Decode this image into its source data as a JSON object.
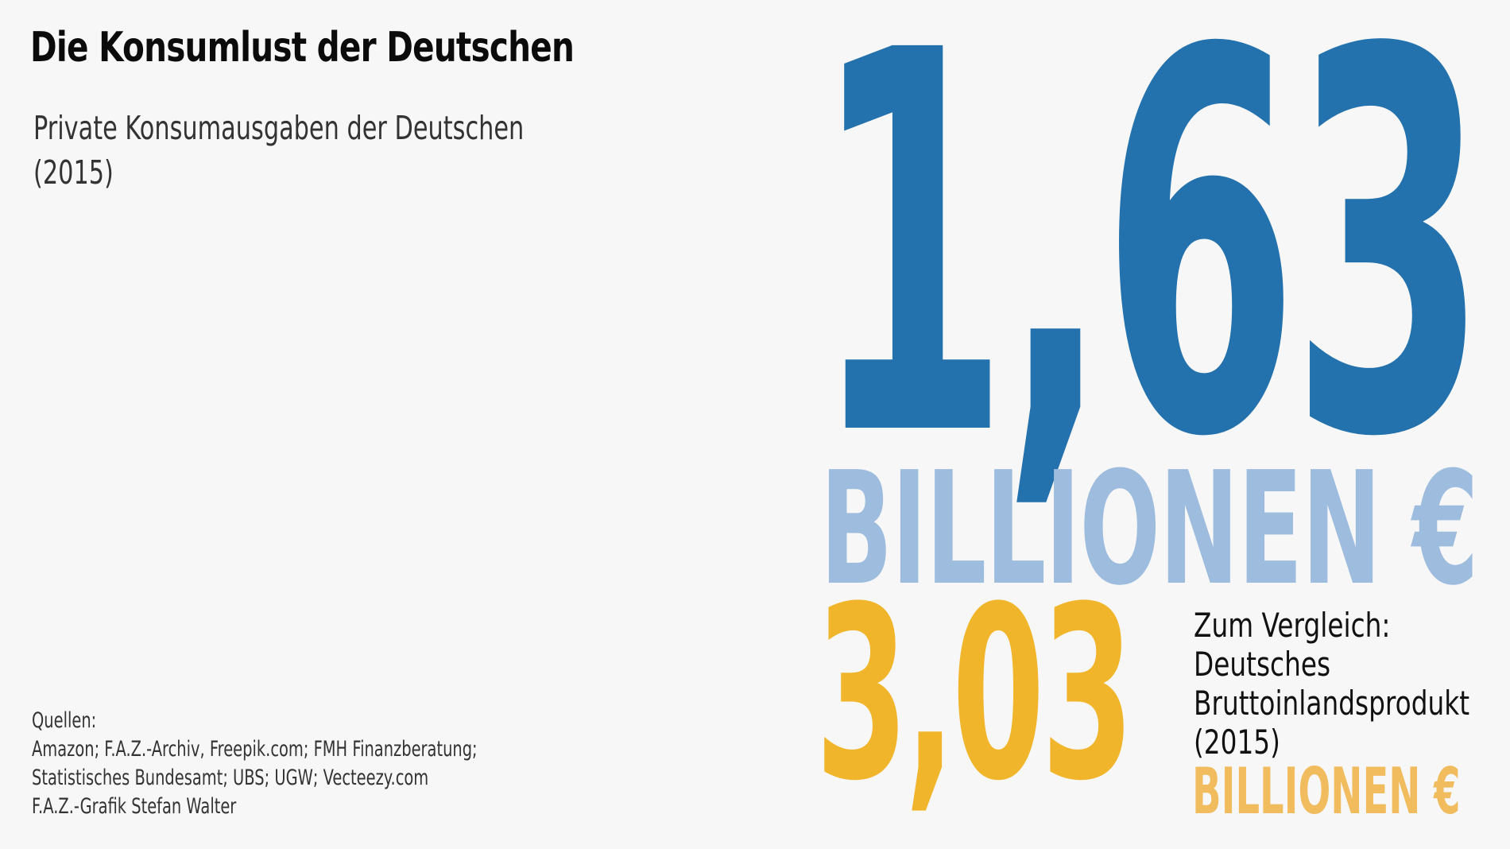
{
  "title": "Die Konsumlust der Deutschen",
  "subtitle": {
    "line1": "Private Konsumausgaben der Deutschen",
    "line2": "(2015)"
  },
  "main_figure": {
    "value": "1,63",
    "unit": "BILLIONEN €"
  },
  "comparison": {
    "value": "3,03",
    "label_lines": [
      "Zum Vergleich:",
      "Deutsches",
      "Bruttoinlandsprodukt",
      "(2015)"
    ],
    "unit": "BILLIONEN €"
  },
  "sources": {
    "heading": "Quellen:",
    "lines": [
      "Amazon; F.A.Z.-Archiv, Freepik.com; FMH Finanzberatung;",
      "Statistisches Bundesamt; UBS; UGW; Vecteezy.com",
      "F.A.Z.-Grafik Stefan Walter"
    ]
  },
  "colors": {
    "background": "#f7f7f7",
    "primary_blue": "#2371ad",
    "light_blue": "#9dbcde",
    "yellow": "#f1b52b",
    "light_yellow": "#f1bc5e"
  }
}
